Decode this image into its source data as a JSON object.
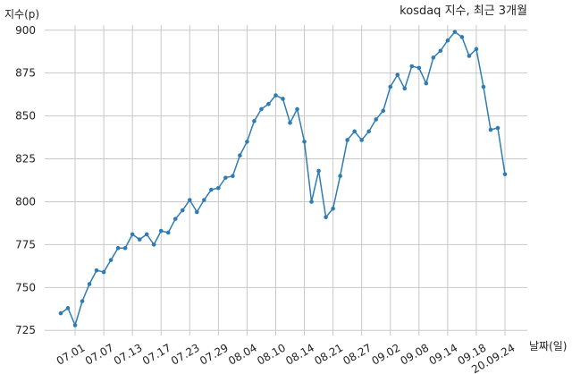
{
  "chart_data": {
    "type": "line",
    "title": "kosdaq 지수, 최근 3개월",
    "xlabel": "날짜(일)",
    "ylabel": "지수(p)",
    "ylim": [
      722,
      903
    ],
    "yticks": [
      725,
      750,
      775,
      800,
      825,
      850,
      875,
      900
    ],
    "xtick_labels": [
      "07.01",
      "07.07",
      "07.13",
      "07.17",
      "07.23",
      "07.29",
      "08.04",
      "08.10",
      "08.14",
      "08.21",
      "08.27",
      "09.02",
      "09.08",
      "09.14",
      "09.18",
      "20.09.24"
    ],
    "xtick_positions": [
      2,
      6,
      10,
      14,
      18,
      22,
      26,
      30,
      34,
      38,
      42,
      46,
      50,
      54,
      58,
      62
    ],
    "grid": true,
    "series": [
      {
        "color": "#2f7cb4",
        "x": [
          0,
          1,
          2,
          3,
          4,
          5,
          6,
          7,
          8,
          9,
          10,
          11,
          12,
          13,
          14,
          15,
          16,
          17,
          18,
          19,
          20,
          21,
          22,
          23,
          24,
          25,
          26,
          27,
          28,
          29,
          30,
          31,
          32,
          33,
          34,
          35,
          36,
          37,
          38,
          39,
          40,
          41,
          42,
          43,
          44,
          45,
          46,
          47,
          48,
          49,
          50,
          51,
          52,
          53,
          54,
          55,
          56,
          57,
          58,
          59,
          60,
          61,
          62
        ],
        "values": [
          735,
          738,
          728,
          742,
          752,
          760,
          759,
          766,
          773,
          773,
          781,
          778,
          781,
          775,
          783,
          782,
          790,
          795,
          801,
          794,
          801,
          807,
          808,
          814,
          815,
          827,
          835,
          847,
          854,
          857,
          862,
          860,
          846,
          854,
          835,
          800,
          818,
          791,
          796,
          815,
          836,
          841,
          836,
          841,
          848,
          853,
          867,
          874,
          866,
          879,
          878,
          869,
          884,
          888,
          894,
          899,
          896,
          885,
          889,
          867,
          842,
          843,
          816
        ]
      }
    ]
  }
}
